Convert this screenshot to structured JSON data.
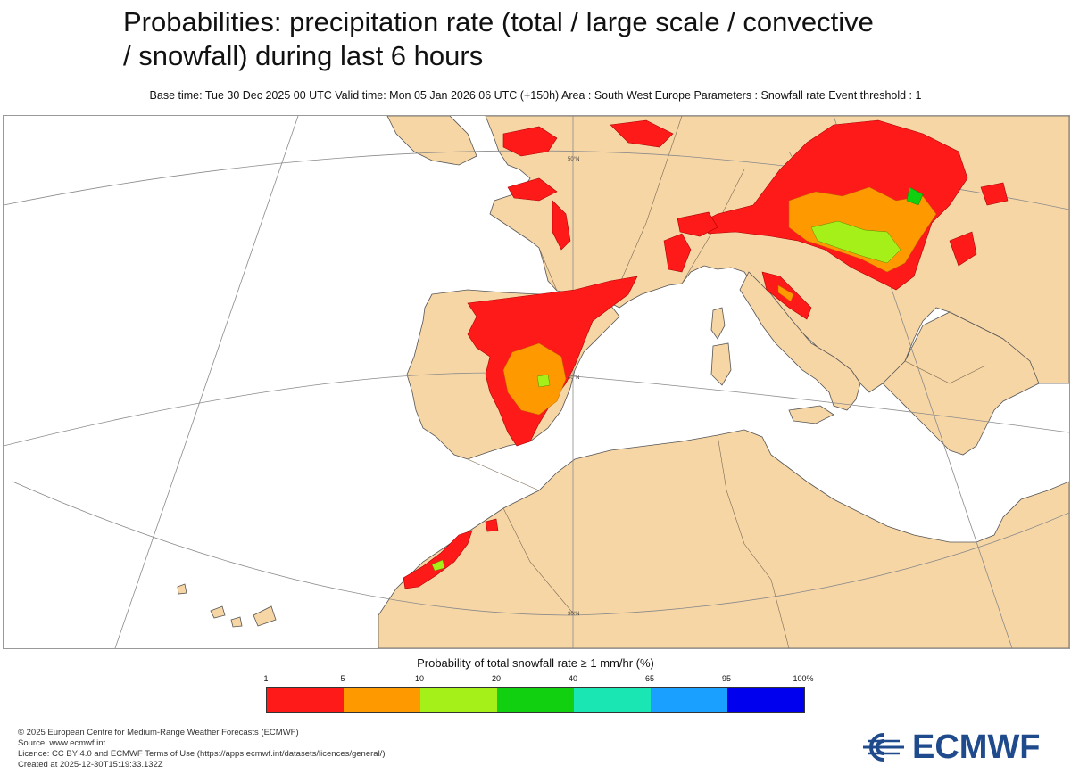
{
  "header": {
    "title_line1": "Probabilities: precipitation rate (total / large scale / convective",
    "title_line2": "/ snowfall) during last 6 hours",
    "subtitle": "Base time: Tue 30 Dec 2025 00 UTC Valid time: Mon 05 Jan 2026 06 UTC (+150h) Area : South West Europe Parameters : Snowfall rate Event threshold : 1"
  },
  "map": {
    "grid_labels": [
      "50°N",
      "40°N",
      "30°N"
    ],
    "colors": {
      "land": "#f7d6a6",
      "sea": "#ffffff",
      "coast": "#555555",
      "grid": "#8a8a8a"
    }
  },
  "legend": {
    "title": "Probability of total snowfall rate ≥ 1 mm/hr (%)",
    "ticks": [
      "1",
      "5",
      "10",
      "20",
      "40",
      "65",
      "95",
      "100%"
    ],
    "colors": [
      "#ff1a1a",
      "#ff9900",
      "#a6f01a",
      "#10d010",
      "#1ae6b4",
      "#1aa0ff",
      "#0000ee"
    ]
  },
  "footer": {
    "line1": "© 2025 European Centre for Medium-Range Weather Forecasts (ECMWF)",
    "line2": "Source: www.ecmwf.int",
    "line3": "Licence: CC BY 4.0 and ECMWF Terms of Use (https://apps.ecmwf.int/datasets/licences/general/)",
    "line4": "Created at 2025-12-30T15:19:33.132Z"
  },
  "logo": {
    "text": "ECMWF"
  }
}
